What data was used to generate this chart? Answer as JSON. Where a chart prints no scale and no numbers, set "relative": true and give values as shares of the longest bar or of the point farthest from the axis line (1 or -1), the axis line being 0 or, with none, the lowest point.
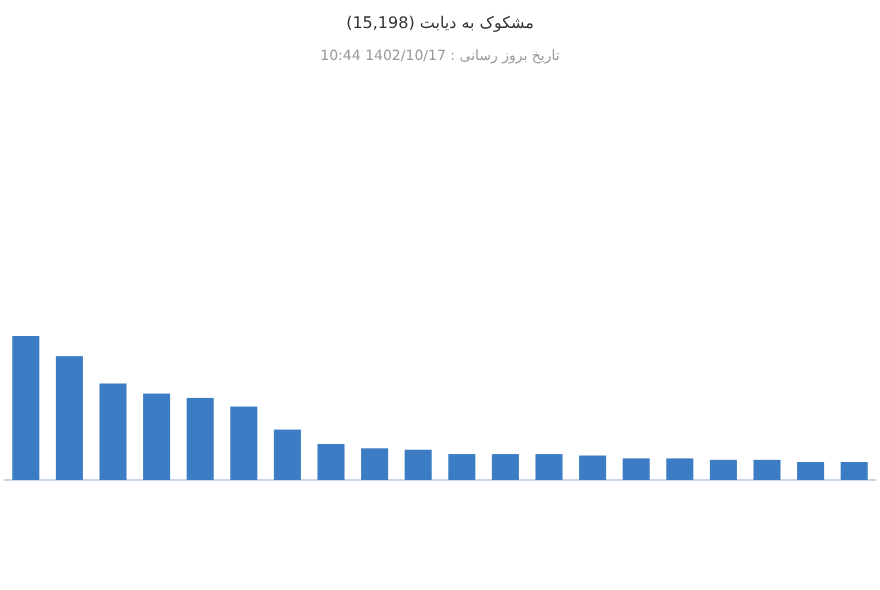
{
  "chart_data": {
    "type": "bar",
    "title": "مشکوک به دیابت (15,198)",
    "subtitle": "تاریخ بروز رسانی : 1402/10/17 10:44",
    "relative": true,
    "color": "#3b7cc4",
    "categories": [
      null,
      null,
      null,
      null,
      null,
      null,
      null,
      null,
      null,
      null,
      null,
      null,
      null,
      null,
      null,
      null,
      null,
      null,
      null,
      null
    ],
    "values": [
      1,
      0.86,
      0.67,
      0.6,
      0.57,
      0.51,
      0.35,
      0.25,
      0.22,
      0.21,
      0.18,
      0.18,
      0.18,
      0.17,
      0.15,
      0.15,
      0.14,
      0.14,
      0.125,
      0.125
    ]
  }
}
